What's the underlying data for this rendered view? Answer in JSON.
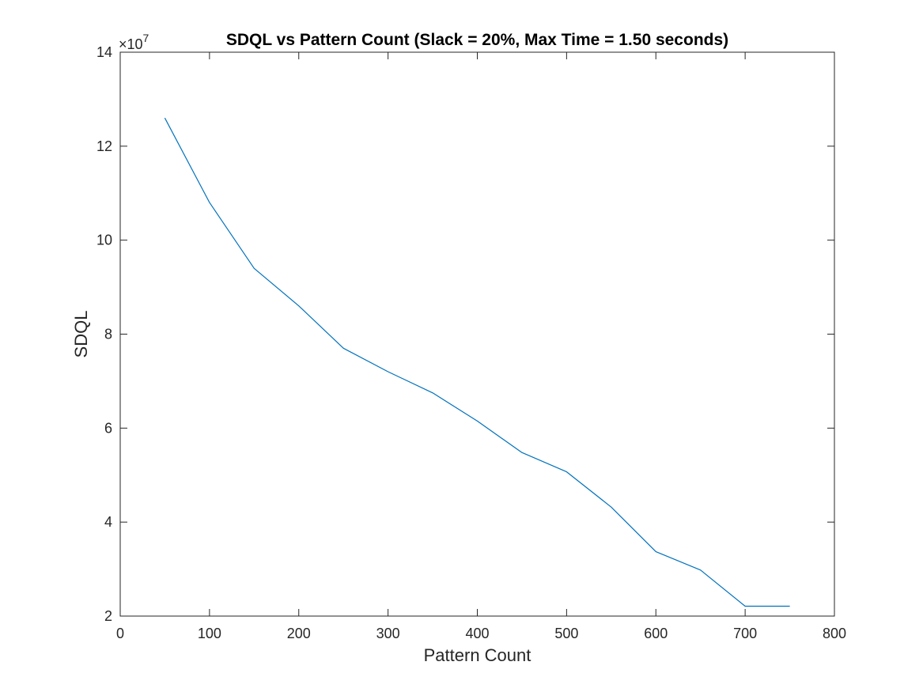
{
  "chart_data": {
    "type": "line",
    "title": "SDQL vs Pattern Count (Slack = 20%, Max Time = 1.50 seconds)",
    "xlabel": "Pattern Count",
    "ylabel": "SDQL",
    "xlim": [
      0,
      800
    ],
    "ylim": [
      20000000,
      140000000
    ],
    "xticks": [
      0,
      100,
      200,
      300,
      400,
      500,
      600,
      700,
      800
    ],
    "yticks": [
      20000000,
      40000000,
      60000000,
      80000000,
      100000000,
      120000000,
      140000000
    ],
    "ytick_labels": [
      "2",
      "4",
      "6",
      "8",
      "10",
      "12",
      "14"
    ],
    "y_exponent_label": {
      "base": "×10",
      "exponent": "7"
    },
    "grid": false,
    "series": [
      {
        "color": "#0072BD",
        "x": [
          50,
          100,
          150,
          200,
          250,
          300,
          350,
          400,
          450,
          500,
          550,
          600,
          650,
          700,
          750
        ],
        "y": [
          126000000,
          108000000,
          94000000,
          86000000,
          77000000,
          72000000,
          67500000,
          61500000,
          54800000,
          50700000,
          43200000,
          33700000,
          29800000,
          22100000,
          22100000
        ]
      }
    ]
  }
}
